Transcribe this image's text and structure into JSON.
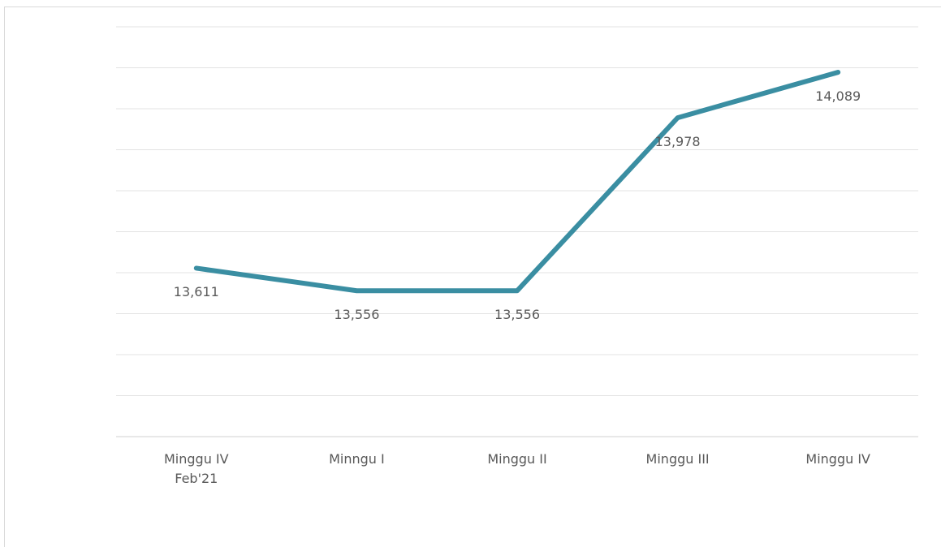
{
  "chart_data": {
    "type": "line",
    "categories": [
      "Minggu IV\nFeb'21",
      "Minngu I",
      "Minggu II",
      "Minggu III",
      "Minggu IV"
    ],
    "series": [
      {
        "color": "#3a8ea2",
        "values": [
          13611,
          13556,
          13556,
          13978,
          14089
        ],
        "value_labels": [
          "13,611",
          "13,556",
          "13,556",
          "13,978",
          "14,089"
        ]
      }
    ],
    "ylim": [
      13200,
      14200
    ],
    "yticks": [
      13200,
      13300,
      13400,
      13500,
      13600,
      13700,
      13800,
      13900,
      14000,
      14100,
      14200
    ],
    "grid": true
  }
}
